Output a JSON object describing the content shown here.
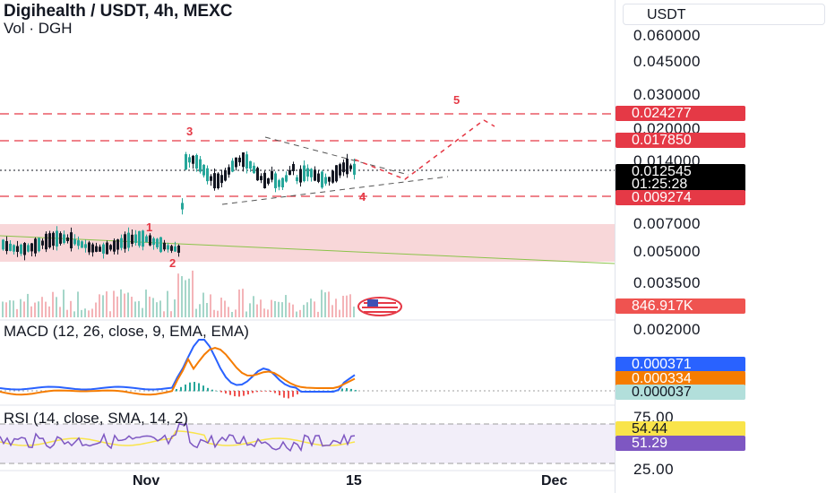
{
  "header": {
    "title": "Digihealth / USDT, 4h, MEXC",
    "volume_label": "Vol · DGH"
  },
  "price_axis": {
    "currency_button": "USDT",
    "ticks": [
      "0.060000",
      "0.045000",
      "0.030000",
      "0.020000",
      "0.014000",
      "0.007000",
      "0.005000",
      "0.003500",
      "0.002000"
    ]
  },
  "price_tags": {
    "level_upper": "0.024277",
    "level_mid": "0.017850",
    "current_price": "0.012545",
    "countdown": "01:25:28",
    "level_lower": "0.009274",
    "volume": "846.917K"
  },
  "waves": {
    "w1": "1",
    "w2": "2",
    "w3": "3",
    "w4": "4",
    "w5": "5"
  },
  "macd": {
    "title": "MACD (12, 26, close, 9, EMA, EMA)",
    "macd_value": "0.000371",
    "signal_value": "0.000334",
    "hist_value": "0.000037"
  },
  "rsi": {
    "title": "RSI (14, close, SMA, 14, 2)",
    "tick_top": "75.00",
    "rsi_value": "54.44",
    "ma_value": "51.29",
    "tick_bottom": "25.00"
  },
  "time_axis": {
    "labels": [
      "Nov",
      "15",
      "Dec"
    ]
  },
  "colors": {
    "up": "#26a69a",
    "down": "#131722",
    "level": "#e53946",
    "macd": "#2962ff",
    "signal": "#f57c00",
    "rsi": "#7e57c2",
    "rsi_ma": "#f9e44a",
    "zone": "#f8d7d9"
  }
}
